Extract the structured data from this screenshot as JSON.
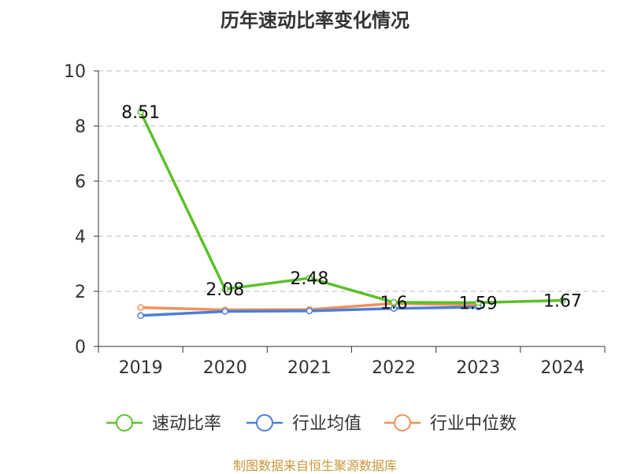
{
  "chart_data": {
    "type": "line",
    "title": "历年速动比率变化情况",
    "categories": [
      "2019",
      "2020",
      "2021",
      "2022",
      "2023",
      "2024"
    ],
    "ylim": [
      0,
      10
    ],
    "yticks": [
      0,
      2,
      4,
      6,
      8,
      10
    ],
    "grid": true,
    "legend_position": "bottom",
    "series": [
      {
        "name": "速动比率",
        "color": "#5cc02a",
        "values": [
          8.51,
          2.08,
          2.48,
          1.6,
          1.59,
          1.67
        ],
        "labels": [
          "8.51",
          "2.08",
          "2.48",
          "1.6",
          "1.59",
          "1.67"
        ]
      },
      {
        "name": "行业均值",
        "color": "#4a7fd8",
        "values": [
          1.12,
          1.27,
          1.29,
          1.38,
          1.43,
          null
        ]
      },
      {
        "name": "行业中位数",
        "color": "#f0925c",
        "values": [
          1.41,
          1.33,
          1.34,
          1.56,
          1.5,
          null
        ]
      }
    ]
  },
  "footer": {
    "source": "制图数据来自恒生聚源数据库"
  }
}
